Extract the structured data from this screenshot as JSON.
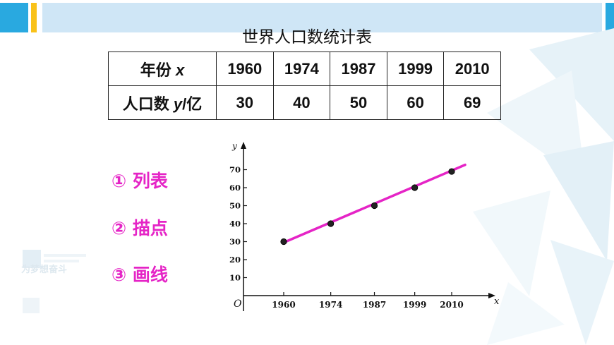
{
  "table": {
    "title": "世界人口数统计表",
    "row1_label": "年份",
    "row1_var": "x",
    "row2_label_a": "人口数",
    "row2_var": "y",
    "row2_label_b": "/亿",
    "years": [
      "1960",
      "1974",
      "1987",
      "1999",
      "2010"
    ],
    "populations": [
      "30",
      "40",
      "50",
      "60",
      "69"
    ]
  },
  "steps": [
    {
      "num": "①",
      "label": "列表"
    },
    {
      "num": "②",
      "label": "描点"
    },
    {
      "num": "③",
      "label": "画线"
    }
  ],
  "watermark": "为梦想奋斗",
  "colors": {
    "accent_blue": "#29a9e0",
    "accent_yellow": "#f9c21a",
    "band": "#cfe6f6",
    "magenta": "#e524c6"
  },
  "chart_data": {
    "type": "scatter",
    "x": [
      1960,
      1974,
      1987,
      1999,
      2010
    ],
    "y": [
      30,
      40,
      50,
      60,
      69
    ],
    "xticks": [
      "1960",
      "1974",
      "1987",
      "1999",
      "2010"
    ],
    "yticks": [
      "10",
      "20",
      "30",
      "40",
      "50",
      "60",
      "70"
    ],
    "xlabel": "x",
    "ylabel": "y",
    "origin_label": "O",
    "ylim": [
      0,
      80
    ],
    "fit_line": {
      "x": [
        1960,
        2010
      ],
      "y": [
        29.5,
        69.5
      ],
      "extended_to_x": 2014,
      "extended_to_y": 72.7
    },
    "grid": false,
    "legend": "none"
  }
}
